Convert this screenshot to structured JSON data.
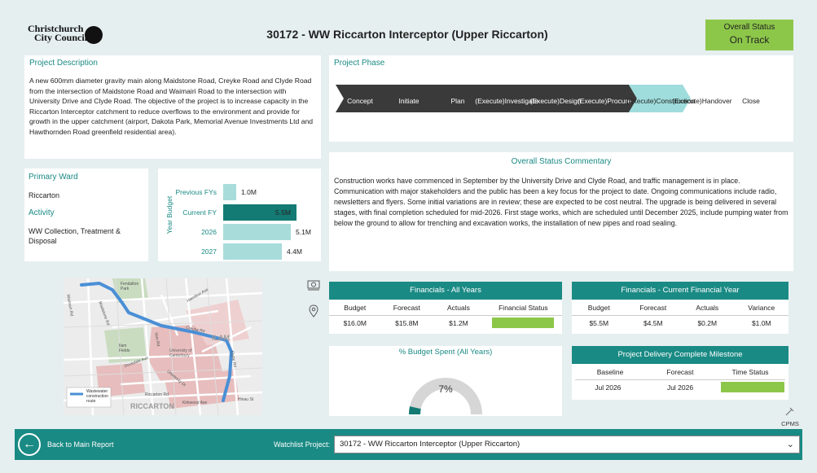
{
  "header": {
    "logo_line1": "Christchurch",
    "logo_line2": "City Council",
    "title": "30172 - WW Riccarton Interceptor (Upper Riccarton)",
    "status_label": "Overall Status",
    "status_value": "On Track",
    "status_color": "#8dc74a"
  },
  "description": {
    "title": "Project Description",
    "text": "A new 600mm diameter gravity main along Maidstone Road, Creyke Road and Clyde Road from the intersection of Maidstone Road and Waimairi Road to the intersection with University Drive and Clyde Road. The objective of the project is to increase capacity in the Riccarton Interceptor catchment to reduce overflows to the environment and provide for growth in the upper catchment (airport, Dakota Park, Memorial Avenue Investments Ltd and Hawthornden Road greenfield residential area)."
  },
  "ward": {
    "title": "Primary Ward",
    "value": "Riccarton",
    "activity_title": "Activity",
    "activity_value": "WW Collection, Treatment & Disposal"
  },
  "year_budget": {
    "axis_label": "Year Budget",
    "rows": [
      {
        "label": "Previous FYs",
        "value": 1.0,
        "display": "1.0M"
      },
      {
        "label": "Current FY",
        "value": 5.5,
        "display": "5.5M",
        "highlight": true
      },
      {
        "label": "2026",
        "value": 5.1,
        "display": "5.1M"
      },
      {
        "label": "2027",
        "value": 4.4,
        "display": "4.4M"
      }
    ],
    "max": 5.5,
    "bar_color": "#a8dcdb",
    "highlight_color": "#137a74"
  },
  "map": {
    "labels": {
      "ilam": "ILAM",
      "riccarton": "RICCARTON",
      "uni": "University of Canterbury",
      "creyke": "Creyke Rd",
      "clyde": "Clyde Rd",
      "hamilton": "Hamilton Ave",
      "ilam_rd": "Ilam Rd",
      "maidstone": "Maidstone Rd",
      "waimairi": "Waimairi Rd",
      "kirkwood": "Kirkwood Ave",
      "hinau": "Hinau St",
      "university_dr": "University Dr",
      "ilam_fields": "Ilam Fields",
      "dovedale": "Dovedale Ave",
      "fendalton": "Fendalton Park",
      "riccarton_rd": "Riccarton Rd"
    },
    "legend": "Wastewater construction route",
    "route_color": "#4a8fd6"
  },
  "phase": {
    "title": "Project Phase",
    "steps": [
      {
        "label": "Concept",
        "state": "done"
      },
      {
        "label": "Initiate",
        "state": "done"
      },
      {
        "label": "Plan",
        "state": "done"
      },
      {
        "label": "(Execute) Investigate",
        "state": "done"
      },
      {
        "label": "(Execute) Design",
        "state": "done"
      },
      {
        "label": "(Execute) Procure",
        "state": "done"
      },
      {
        "label": "(Execute) Construction",
        "state": "current"
      },
      {
        "label": "(Execute) Handover",
        "state": "todo"
      },
      {
        "label": "Close",
        "state": "todo"
      }
    ],
    "done_color": "#3a3a3a",
    "current_color": "#9fdcdc"
  },
  "commentary": {
    "title": "Overall Status Commentary",
    "text": "Construction works have commenced in September by the University Drive and Clyde Road, and traffic management is in place. Communication with major stakeholders and the public has been a key focus for the project to date. Ongoing communications include radio, newsletters and flyers. Some initial variations are in review; these are expected to be cost neutral. The upgrade is being delivered in several stages, with final completion scheduled for mid-2026. First stage works, which are scheduled until December 2025, include pumping water from below the ground to allow for trenching and excavation works, the installation of new pipes and road sealing."
  },
  "fin_all": {
    "title": "Financials - All Years",
    "headers": [
      "Budget",
      "Forecast",
      "Actuals",
      "Financial Status"
    ],
    "values": [
      "$16.0M",
      "$15.8M",
      "$1.2M"
    ]
  },
  "fin_current": {
    "title": "Financials - Current Financial Year",
    "headers": [
      "Budget",
      "Forecast",
      "Actuals",
      "Variance"
    ],
    "values": [
      "$5.5M",
      "$4.5M",
      "$0.2M",
      "$1.0M"
    ]
  },
  "budget_spent": {
    "title": "% Budget Spent (All Years)",
    "display": "7%",
    "fraction": 0.07,
    "fill_color": "#137a74",
    "track_color": "#d6d6d6"
  },
  "milestone": {
    "title": "Project Delivery Complete Milestone",
    "headers": [
      "Baseline",
      "Forecast",
      "Time Status"
    ],
    "values": [
      "Jul 2026",
      "Jul 2026"
    ]
  },
  "cpms": {
    "label": "CPMS"
  },
  "footer": {
    "back_label": "Back to Main Report",
    "watch_label": "Watchlist Project:",
    "watch_value": "30172 - WW Riccarton Interceptor (Upper Riccarton)"
  }
}
